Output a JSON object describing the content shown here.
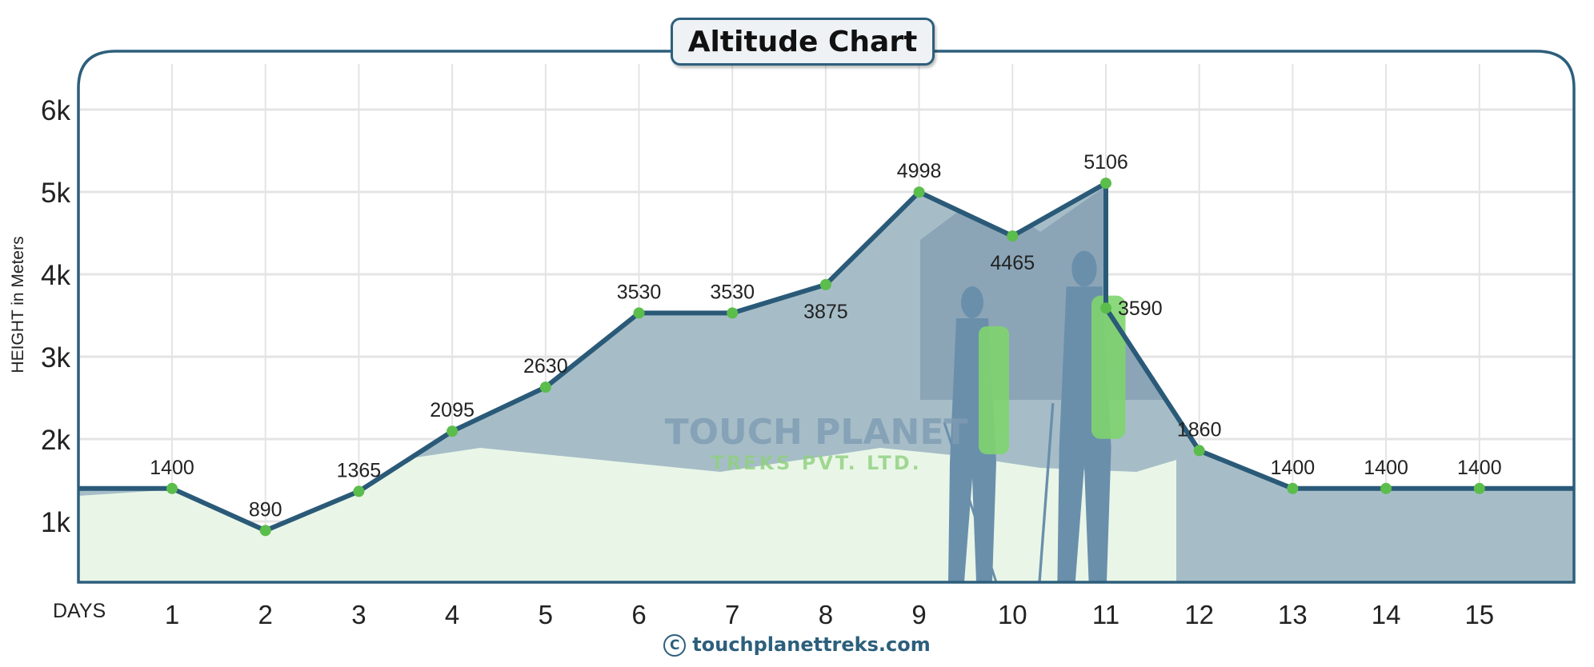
{
  "chart_data": {
    "type": "line",
    "title": "Altitude Chart",
    "xlabel": "DAYS",
    "ylabel": "HEIGHT in Meters",
    "x_ticks": [
      "1",
      "2",
      "3",
      "4",
      "5",
      "6",
      "7",
      "8",
      "9",
      "10",
      "11",
      "12",
      "13",
      "14",
      "15"
    ],
    "y_ticks": [
      {
        "value": 1000,
        "label": "1k"
      },
      {
        "value": 2000,
        "label": "2k"
      },
      {
        "value": 3000,
        "label": "3k"
      },
      {
        "value": 4000,
        "label": "4k"
      },
      {
        "value": 5000,
        "label": "5k"
      },
      {
        "value": 6000,
        "label": "6k"
      }
    ],
    "ylim": [
      260,
      6700
    ],
    "xlim": [
      0,
      16
    ],
    "grid": true,
    "points": [
      {
        "day": 1,
        "value": 1400,
        "label": "1400",
        "label_pos": "above"
      },
      {
        "day": 2,
        "value": 890,
        "label": "890",
        "label_pos": "above"
      },
      {
        "day": 3,
        "value": 1365,
        "label": "1365",
        "label_pos": "above"
      },
      {
        "day": 4,
        "value": 2095,
        "label": "2095",
        "label_pos": "above"
      },
      {
        "day": 5,
        "value": 2630,
        "label": "2630",
        "label_pos": "above"
      },
      {
        "day": 6,
        "value": 3530,
        "label": "3530",
        "label_pos": "above"
      },
      {
        "day": 7,
        "value": 3530,
        "label": "3530",
        "label_pos": "above"
      },
      {
        "day": 8,
        "value": 3875,
        "label": "3875",
        "label_pos": "below"
      },
      {
        "day": 9,
        "value": 4998,
        "label": "4998",
        "label_pos": "above"
      },
      {
        "day": 10,
        "value": 4465,
        "label": "4465",
        "label_pos": "below"
      },
      {
        "day": 11,
        "value": 5106,
        "label": "5106",
        "label_pos": "above"
      },
      {
        "day": 11,
        "value": 3590,
        "label": "3590",
        "label_pos": "right"
      },
      {
        "day": 12,
        "value": 1860,
        "label": "1860",
        "label_pos": "above"
      },
      {
        "day": 13,
        "value": 1400,
        "label": "1400",
        "label_pos": "above"
      },
      {
        "day": 14,
        "value": 1400,
        "label": "1400",
        "label_pos": "above"
      },
      {
        "day": 15,
        "value": 1400,
        "label": "1400",
        "label_pos": "above"
      }
    ],
    "colors": {
      "line": "#2a5a78",
      "point": "#5bbd4b",
      "fill": "#e9f6e7",
      "frame": "#2d5f7c",
      "mountain": "#8fa9bd"
    }
  },
  "watermark": {
    "line1": "TOUCH PLANET",
    "line2": "TREKS  PVT. LTD."
  },
  "footer": {
    "copyright_symbol": "C",
    "text": "touchplanettreks.com"
  }
}
